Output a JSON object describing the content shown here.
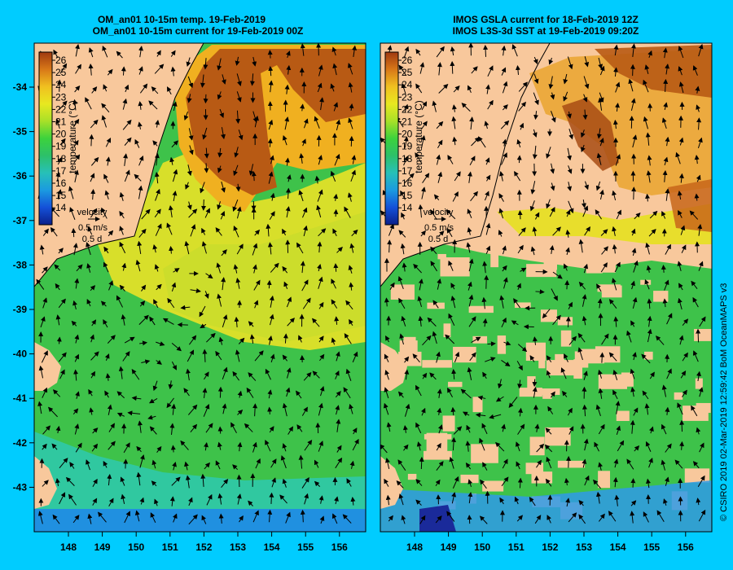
{
  "left_panel": {
    "title_line1": "OM_an01 10-15m temp. 19-Feb-2019",
    "title_line2": "OM_an01 10-15m current for 19-Feb-2019 00Z",
    "colorbar_label": "temperature (°C)",
    "colorbar_ticks": [
      "26",
      "25",
      "24",
      "23",
      "22",
      "21",
      "20",
      "19",
      "18",
      "17",
      "16",
      "15",
      "14"
    ],
    "velocity_label": "velocity",
    "velocity_speed": "0.5 m/s",
    "velocity_time": "0.5 d",
    "lat_ticks": [
      "-34",
      "-35",
      "-36",
      "-37",
      "-38",
      "-39",
      "-40",
      "-41",
      "-42",
      "-43"
    ],
    "lon_ticks": [
      "148",
      "149",
      "150",
      "151",
      "152",
      "153",
      "154",
      "155",
      "156"
    ]
  },
  "right_panel": {
    "title_line1": "IMOS GSLA current for 18-Feb-2019 12Z",
    "title_line2": "IMOS L3S-3d SST at 19-Feb-2019 09:20Z",
    "colorbar_label": "temperature (°C)",
    "colorbar_ticks": [
      "26",
      "25",
      "24",
      "23",
      "22",
      "21",
      "20",
      "19",
      "18",
      "17",
      "16",
      "15",
      "14"
    ],
    "velocity_label": "velocity",
    "velocity_speed": "0.5 m/s",
    "velocity_time": "0.5 d",
    "lon_ticks": [
      "148",
      "149",
      "150",
      "151",
      "152",
      "153",
      "154",
      "155",
      "156"
    ]
  },
  "credit": "© CSIRO 2019   02-Mar-2019 12:59:42 BoM OceanMAPS v3",
  "colors": {
    "background": "#00ccff",
    "land": "#f8c89c",
    "arrow": "#000000"
  }
}
